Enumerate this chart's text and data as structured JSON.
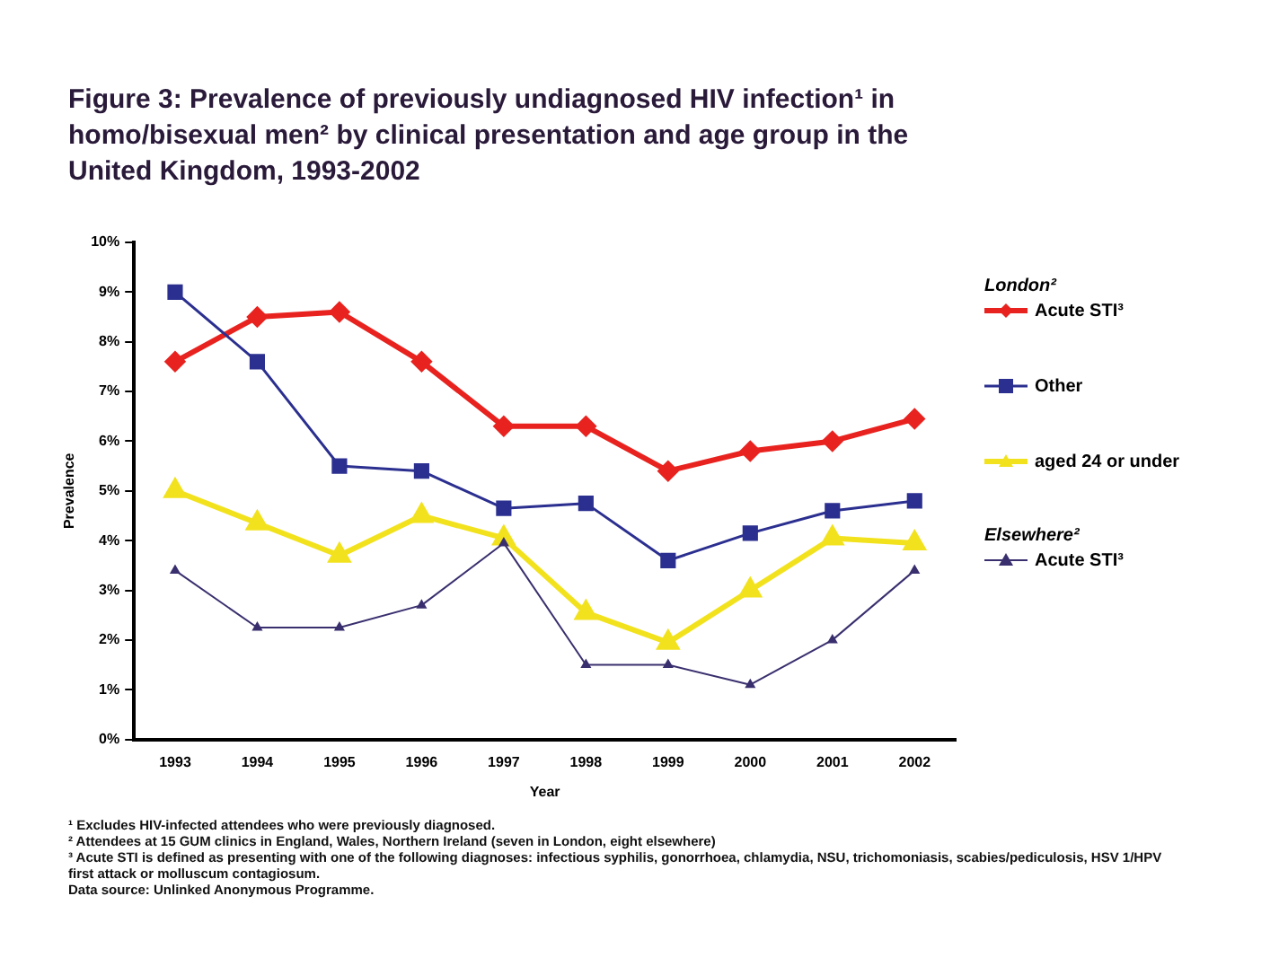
{
  "chart_data": {
    "type": "line",
    "title": "Figure 3: Prevalence of previously undiagnosed HIV infection¹ in homo/bisexual men² by clinical presentation and age group in the United Kingdom, 1993-2002",
    "xlabel": "Year",
    "ylabel": "Prevalence",
    "legend_title": "London²",
    "categories": [
      "1993",
      "1994",
      "1995",
      "1996",
      "1997",
      "1998",
      "1999",
      "2000",
      "2001",
      "2002"
    ],
    "series": [
      {
        "name": "Acute STI³",
        "color": "#e8231f",
        "marker": "diamond",
        "values": [
          7.6,
          8.5,
          8.6,
          7.6,
          6.3,
          6.3,
          5.4,
          5.8,
          6.0,
          6.45
        ]
      },
      {
        "name": "Other",
        "color": "#2b2f8f",
        "marker": "square",
        "values": [
          9.0,
          7.6,
          5.5,
          5.4,
          4.65,
          4.75,
          3.6,
          4.15,
          4.6,
          4.8
        ]
      },
      {
        "name": "aged 24 or under",
        "color": "#f2e21e",
        "marker": "triangle",
        "values": [
          5.0,
          4.35,
          3.7,
          4.5,
          4.05,
          2.55,
          1.95,
          3.0,
          4.05,
          3.95
        ]
      },
      {
        "name": "Acute STI³",
        "color": "#3a2f6e",
        "marker": "triangle",
        "values": [
          3.4,
          2.25,
          2.25,
          2.7,
          3.95,
          1.5,
          1.5,
          1.1,
          2.0,
          3.4
        ]
      }
    ],
    "ylim": [
      0,
      10
    ],
    "yticks": [
      {
        "value": 0,
        "label": "0%"
      },
      {
        "value": 1,
        "label": "1%"
      },
      {
        "value": 2,
        "label": "2%"
      },
      {
        "value": 3,
        "label": "3%"
      },
      {
        "value": 4,
        "label": "4%"
      },
      {
        "value": 5,
        "label": "5%"
      },
      {
        "value": 6,
        "label": "6%"
      },
      {
        "value": 7,
        "label": "7%"
      },
      {
        "value": 8,
        "label": "8%"
      },
      {
        "value": 9,
        "label": "9%"
      },
      {
        "value": 10,
        "label": "10%"
      }
    ],
    "grid": false,
    "legend": "right",
    "line_style": "solid",
    "annotations": [
      "Elsewhere²",
      "¹ Excludes HIV-infected attendees who were previously diagnosed.",
      "² Attendees at 15 GUM clinics in England, Wales, Northern Ireland (seven in London, eight elsewhere)",
      "³ Acute STI is defined as presenting with one of the following diagnoses: infectious syphilis, gonorrhoea, chlamydia, NSU, trichomoniasis, scabies/pediculosis, HSV 1/HPV first attack or molluscum contagiosum.",
      "Data source: Unlinked Anonymous Programme."
    ]
  }
}
